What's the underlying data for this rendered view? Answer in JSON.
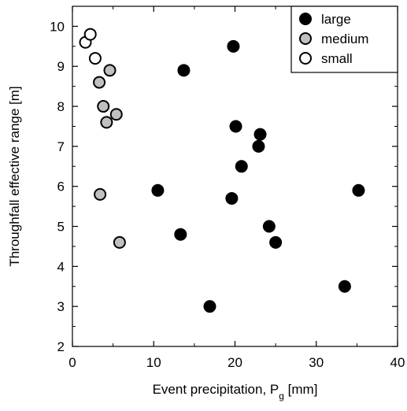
{
  "chart_data": {
    "type": "scatter",
    "title": "",
    "xlabel": "Event precipitation, P",
    "xlabel_subscript": "g",
    "xlabel_unit": "[mm]",
    "ylabel": "Throughfall effective range [m]",
    "xlim": [
      0,
      40
    ],
    "ylim": [
      2,
      10.5
    ],
    "x_ticks": [
      0,
      10,
      20,
      30,
      40
    ],
    "y_ticks": [
      2,
      3,
      4,
      5,
      6,
      7,
      8,
      9,
      10
    ],
    "grid": false,
    "legend_position": "top-right",
    "series": [
      {
        "name": "large",
        "color": "#000000",
        "points": [
          {
            "x": 10.5,
            "y": 5.9
          },
          {
            "x": 13.3,
            "y": 4.8
          },
          {
            "x": 13.7,
            "y": 8.9
          },
          {
            "x": 16.9,
            "y": 3.0
          },
          {
            "x": 19.6,
            "y": 5.7
          },
          {
            "x": 19.8,
            "y": 9.5
          },
          {
            "x": 20.1,
            "y": 7.5
          },
          {
            "x": 20.8,
            "y": 6.5
          },
          {
            "x": 22.9,
            "y": 7.0
          },
          {
            "x": 23.1,
            "y": 7.3
          },
          {
            "x": 24.2,
            "y": 5.0
          },
          {
            "x": 25.0,
            "y": 4.6
          },
          {
            "x": 33.5,
            "y": 3.5
          },
          {
            "x": 35.2,
            "y": 5.9
          }
        ]
      },
      {
        "name": "medium",
        "color": "#c0c0c0",
        "points": [
          {
            "x": 3.3,
            "y": 8.6
          },
          {
            "x": 3.4,
            "y": 5.8
          },
          {
            "x": 3.8,
            "y": 8.0
          },
          {
            "x": 4.2,
            "y": 7.6
          },
          {
            "x": 4.6,
            "y": 8.9
          },
          {
            "x": 5.4,
            "y": 7.8
          },
          {
            "x": 5.8,
            "y": 4.6
          }
        ]
      },
      {
        "name": "small",
        "color": "#ffffff",
        "points": [
          {
            "x": 1.6,
            "y": 9.6
          },
          {
            "x": 2.2,
            "y": 9.8
          },
          {
            "x": 2.8,
            "y": 9.2
          }
        ]
      }
    ]
  }
}
